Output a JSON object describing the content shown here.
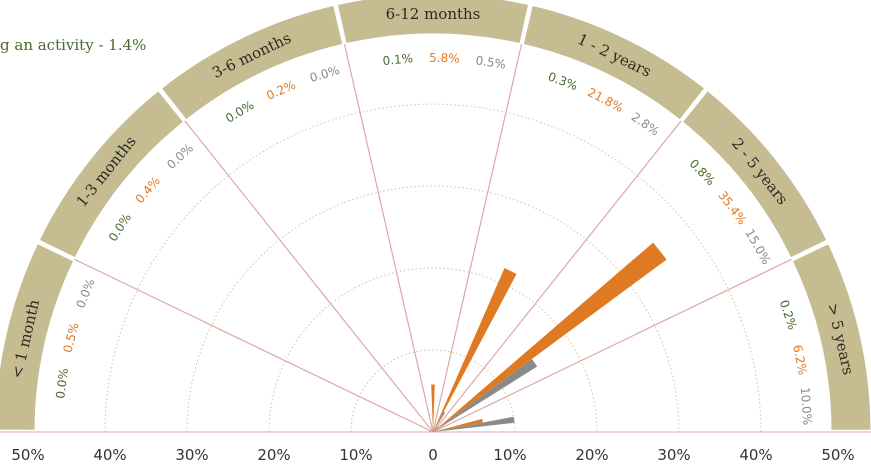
{
  "note": "g an activity - 1.4%",
  "colors": {
    "band": "#c5bc92",
    "band_edge": "#ffffff",
    "spoke": "#e0a6a6",
    "grid": "#c9c9a5",
    "s0": "#4a6a2c",
    "s1": "#e07a22",
    "s2": "#8a8a8a"
  },
  "chart_data": {
    "type": "polar-bar",
    "categories": [
      "< 1 month",
      "1-3 months",
      "3-6 months",
      "6-12 months",
      "1 - 2 years",
      "2 - 5 years",
      "> 5 years"
    ],
    "series": [
      {
        "values": [
          0.0,
          0.0,
          0.0,
          0.1,
          0.3,
          0.8,
          0.2
        ],
        "labels": [
          "0.0%",
          "0.0%",
          "0.0%",
          "0.1%",
          "0.3%",
          "0.8%",
          "0.2%"
        ]
      },
      {
        "values": [
          0.5,
          0.4,
          0.2,
          5.8,
          21.8,
          35.4,
          6.2
        ],
        "labels": [
          "0.5%",
          "0.4%",
          "0.2%",
          "5.8%",
          "21.8%",
          "35.4%",
          "6.2%"
        ]
      },
      {
        "values": [
          0.0,
          0.0,
          0.0,
          0.5,
          2.8,
          15.0,
          10.0
        ],
        "labels": [
          "0.0%",
          "0.0%",
          "0.0%",
          "0.5%",
          "2.8%",
          "15.0%",
          "10.0%"
        ]
      }
    ],
    "radial_max": 50,
    "ticks_left": [
      "50%",
      "40%",
      "30%",
      "20%",
      "10%"
    ],
    "tick_center": "0",
    "ticks_right": [
      "10%",
      "20%",
      "30%",
      "40%",
      "50%"
    ]
  }
}
